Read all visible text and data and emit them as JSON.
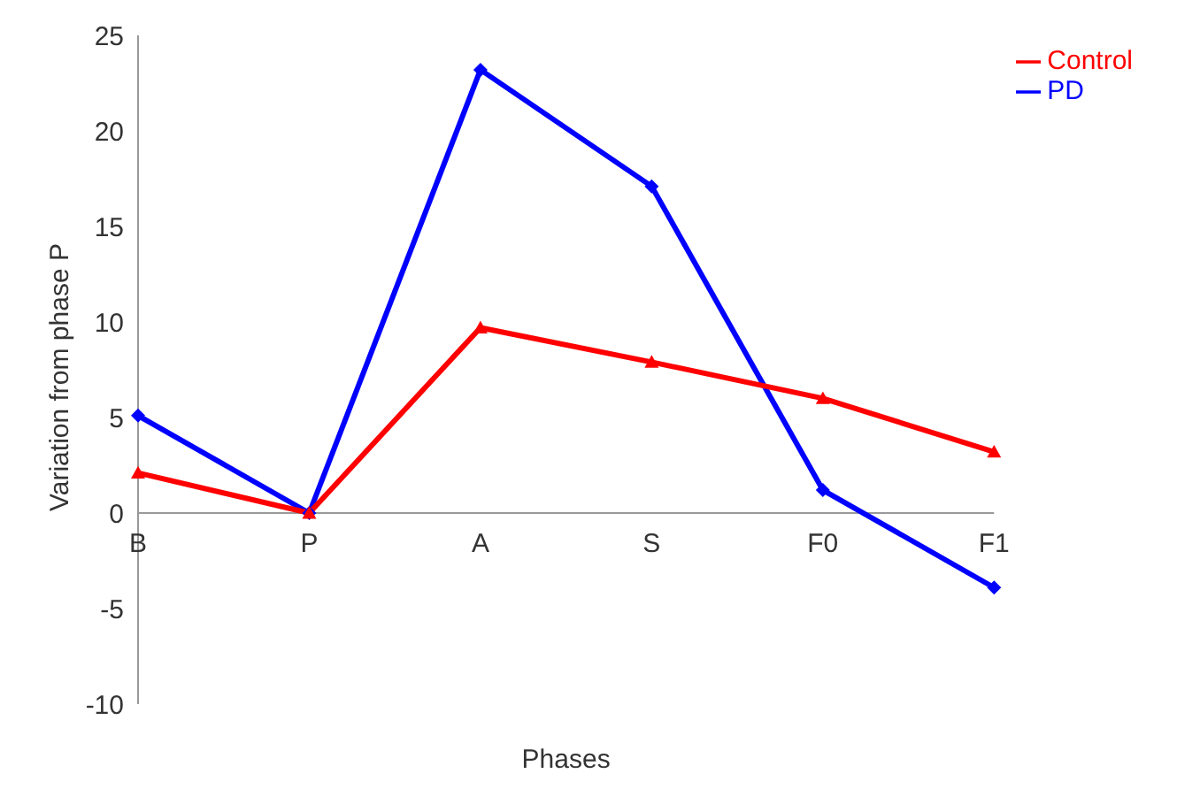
{
  "chart_data": {
    "type": "line",
    "xlabel": "Phases",
    "ylabel": "Variation from phase P",
    "categories": [
      "B",
      "P",
      "A",
      "S",
      "F0",
      "F1"
    ],
    "series": [
      {
        "name": "PD",
        "color": "#0000ff",
        "marker": "diamond",
        "values": [
          5.1,
          0,
          23.2,
          17.1,
          1.2,
          -3.9
        ]
      },
      {
        "name": "Control",
        "color": "#ff0000",
        "marker": "triangle",
        "values": [
          2.1,
          0,
          9.7,
          7.9,
          6.0,
          3.2
        ]
      }
    ],
    "ylim": [
      -10,
      25
    ],
    "yticks": [
      -10,
      -5,
      0,
      5,
      10,
      15,
      20,
      25
    ],
    "grid": false,
    "legend": "top right"
  }
}
